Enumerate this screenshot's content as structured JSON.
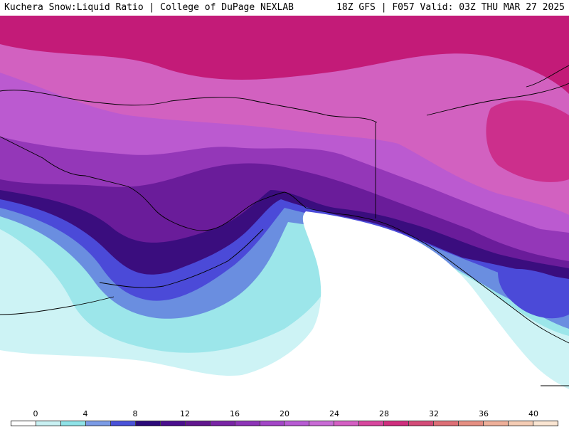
{
  "header": {
    "left_title": "Kuchera Snow:Liquid Ratio | College of DuPage NEXLAB",
    "right_title": "18Z GFS | F057 Valid: 03Z THU MAR 27 2025"
  },
  "legend": {
    "ticks": [
      "0",
      "4",
      "8",
      "12",
      "16",
      "20",
      "24",
      "28",
      "32",
      "36",
      "40"
    ],
    "colors": [
      "#ffffff",
      "#c9f1f3",
      "#8fe3e8",
      "#7b9be6",
      "#4a52d9",
      "#2c0a7a",
      "#4b0e8e",
      "#62168f",
      "#7a24a6",
      "#8e34b8",
      "#a446c8",
      "#b85bd4",
      "#c96bd6",
      "#d55fc4",
      "#d8479e",
      "#d02e7e",
      "#d44b78",
      "#de6f76",
      "#e68f82",
      "#efb09a",
      "#f5cdb5",
      "#fbe6d3"
    ]
  },
  "map": {
    "field_colors": {
      "none": "#ffffff",
      "very_low": "#cdf3f5",
      "low": "#9ce6ea",
      "mid_low": "#6a8ee0",
      "mid": "#4b4ad8",
      "deep": "#3a0d7e",
      "purple": "#6a1c9a",
      "violet": "#9437b8",
      "orchid": "#bb5ad0",
      "pink": "#d261c0",
      "magenta": "#cc2f8c",
      "deep_magenta": "#c31b78"
    }
  }
}
